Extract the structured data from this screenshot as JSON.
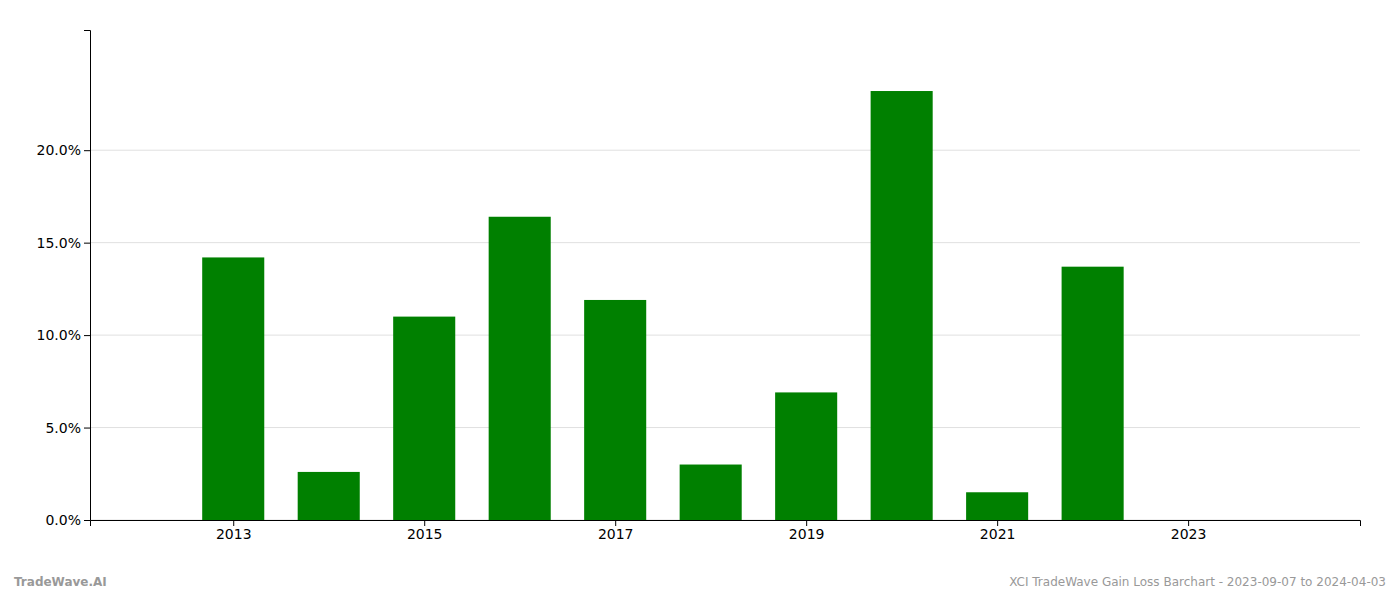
{
  "chart_data": {
    "type": "bar",
    "x": [
      2013,
      2014,
      2015,
      2016,
      2017,
      2018,
      2019,
      2020,
      2021,
      2022,
      2023
    ],
    "values": [
      0.142,
      0.026,
      0.11,
      0.164,
      0.119,
      0.03,
      0.069,
      0.232,
      0.015,
      0.137,
      0.0
    ],
    "color": "#008000",
    "xlim": [
      2011.5,
      2024.8
    ],
    "xticks": [
      2013,
      2015,
      2017,
      2019,
      2021,
      2023
    ],
    "ylim": [
      0,
      0.265
    ],
    "yticks": [
      {
        "value": 0.0,
        "label": "0.0%"
      },
      {
        "value": 0.05,
        "label": "5.0%"
      },
      {
        "value": 0.1,
        "label": "10.0%"
      },
      {
        "value": 0.15,
        "label": "15.0%"
      },
      {
        "value": 0.2,
        "label": "20.0%"
      }
    ],
    "grid": true,
    "annotations": [
      "TradeWave.AI",
      "XCI TradeWave Gain Loss Barchart - 2023-09-07 to 2024-04-03"
    ]
  }
}
